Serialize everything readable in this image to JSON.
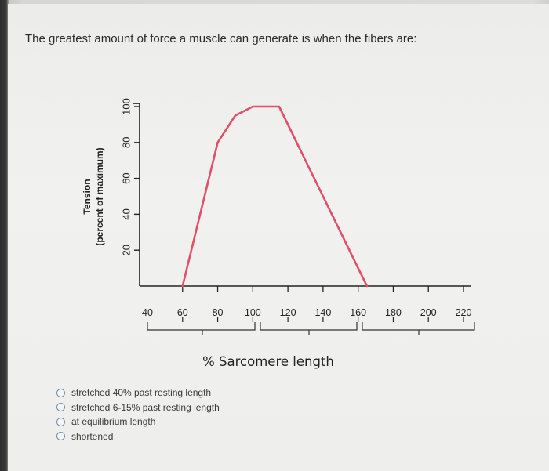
{
  "question": "The greatest amount of force a muscle can generate is when the fibers are:",
  "options": [
    {
      "label": "stretched 40% past resting length"
    },
    {
      "label": "stretched 6-15% past resting length"
    },
    {
      "label": "at equilibrium length"
    },
    {
      "label": "shortened"
    }
  ],
  "chart_data": {
    "type": "line",
    "xlabel": "% Sarcomere length",
    "ylabel_line1": "Tension",
    "ylabel_line2": "(percent of maximum)",
    "x_ticks": [
      "40",
      "60",
      "80",
      "100",
      "120",
      "140",
      "160",
      "180",
      "200",
      "220"
    ],
    "y_ticks": [
      "20",
      "40",
      "60",
      "80",
      "100"
    ],
    "xlim": [
      40,
      225
    ],
    "ylim": [
      0,
      100
    ],
    "series": [
      {
        "color": "#e0506a",
        "points": [
          [
            60,
            0
          ],
          [
            80,
            80
          ],
          [
            90,
            95
          ],
          [
            100,
            100
          ],
          [
            115,
            100
          ],
          [
            165,
            0
          ]
        ]
      }
    ]
  }
}
